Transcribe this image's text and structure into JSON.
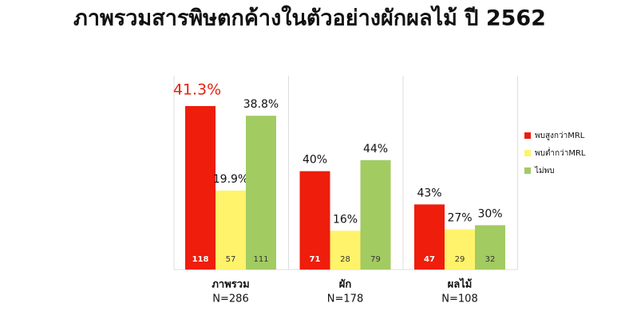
{
  "chart_data": {
    "type": "bar",
    "title": "ภาพรวมสารพิษตกค้างในตัวอย่างผักผลไม้ ปี 2562",
    "categories": [
      "ภาพรวม",
      "ผัก",
      "ผลไม้"
    ],
    "category_sublabels": [
      "N=286",
      "N=178",
      "N=108"
    ],
    "series": [
      {
        "name": "พบสูงกว่าMRL",
        "color": "#ee1d0c",
        "values": [
          41.3,
          40,
          43
        ],
        "value_labels": [
          "41.3%",
          "40%",
          "43%"
        ],
        "counts": [
          118,
          71,
          47
        ]
      },
      {
        "name": "พบต่ำกว่าMRL",
        "color": "#fff36b",
        "values": [
          19.9,
          16,
          27
        ],
        "value_labels": [
          "19.9%",
          "16%",
          "27%"
        ],
        "counts": [
          57,
          28,
          29
        ]
      },
      {
        "name": "ไม่พบ",
        "color": "#a2cb62",
        "values": [
          38.8,
          44,
          30
        ],
        "value_labels": [
          "38.8%",
          "44%",
          "30%"
        ],
        "counts": [
          111,
          79,
          32
        ]
      }
    ]
  }
}
